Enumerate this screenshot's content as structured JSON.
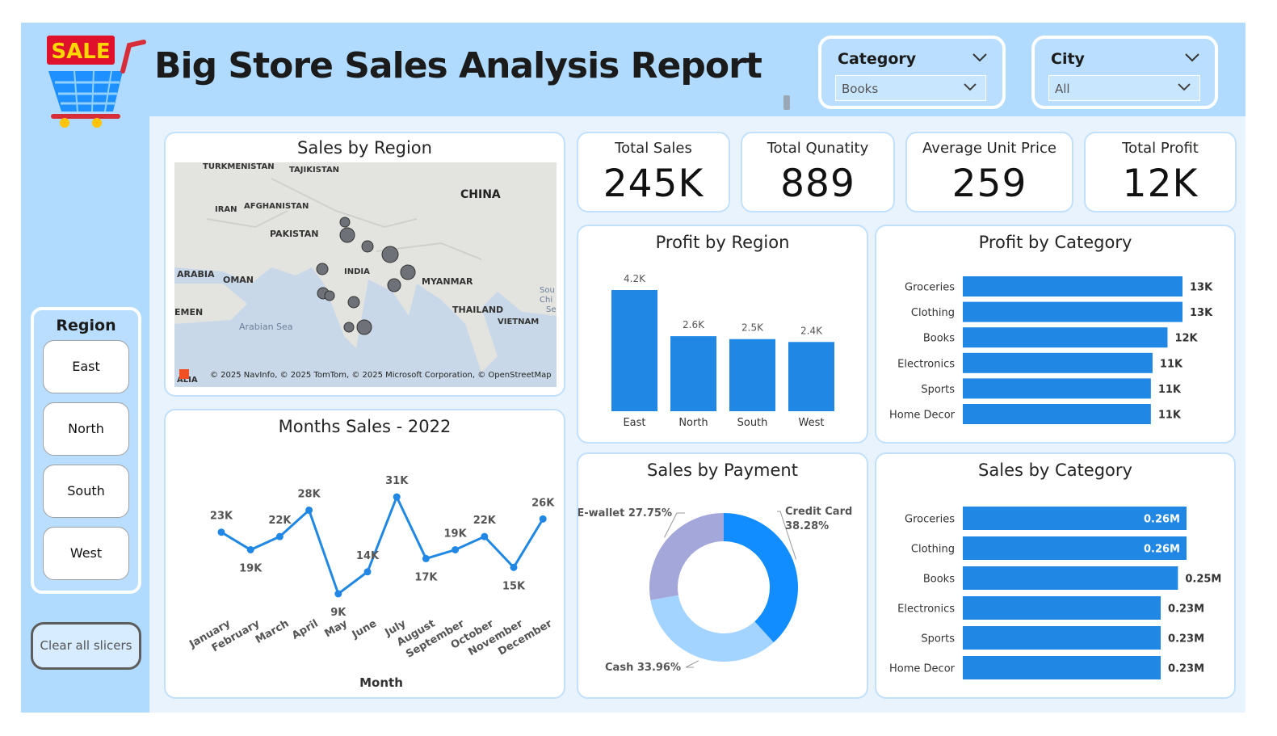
{
  "header": {
    "title": "Big Store Sales Analysis Report",
    "logo_text": "SALE"
  },
  "filters": {
    "category": {
      "label": "Category",
      "value": "Books"
    },
    "city": {
      "label": "City",
      "value": "All"
    }
  },
  "region_slicer": {
    "title": "Region",
    "items": [
      {
        "label": "East"
      },
      {
        "label": "North"
      },
      {
        "label": "South"
      },
      {
        "label": "West"
      }
    ]
  },
  "clear_button": "Clear all slicers",
  "kpis": [
    {
      "title": "Total Sales",
      "value": "245K"
    },
    {
      "title": "Total Qunatity",
      "value": "889"
    },
    {
      "title": "Average Unit Price",
      "value": "259"
    },
    {
      "title": "Total Profit",
      "value": "12K"
    }
  ],
  "map": {
    "title": "Sales by Region",
    "labels": [
      "TURKMENISTAN",
      "TAJIKISTAN",
      "CHINA",
      "IRAN",
      "AFGHANISTAN",
      "PAKISTAN",
      "ARABIA",
      "OMAN",
      "INDIA",
      "MYANMAR",
      "EMEN",
      "THAILAND",
      "VIETNAM",
      "Arabian Sea",
      "Sou",
      "Chi",
      "Se",
      "ALIA"
    ],
    "attribution": "© 2025 NavInfo, © 2025 TomTom, © 2025 Microsoft Corporation, © OpenStreetMap"
  },
  "colors": {
    "accent": "#2088e4",
    "background": "#b0dbff",
    "main_background": "#e8f3fd",
    "donut_credit": "#118dff",
    "donut_cash": "#a2d4ff",
    "donut_ewallet": "#a3a7d9"
  },
  "chart_data": [
    {
      "id": "profit_by_region",
      "type": "bar",
      "title": "Profit by Region",
      "categories": [
        "East",
        "North",
        "South",
        "West"
      ],
      "values": [
        4.2,
        2.6,
        2.5,
        2.4
      ],
      "data_labels": [
        "4.2K",
        "2.6K",
        "2.5K",
        "2.4K"
      ],
      "ylim": [
        0,
        4.2
      ]
    },
    {
      "id": "profit_by_category",
      "type": "bar",
      "orientation": "horizontal",
      "title": "Profit by Category",
      "categories": [
        "Groceries",
        "Clothing",
        "Books",
        "Electronics",
        "Sports",
        "Home Decor"
      ],
      "values": [
        13.2,
        13.2,
        12.3,
        11.4,
        11.3,
        11.3
      ],
      "data_labels": [
        "13K",
        "13K",
        "12K",
        "11K",
        "11K",
        "11K"
      ]
    },
    {
      "id": "months_sales",
      "type": "line",
      "title": "Months Sales - 2022",
      "xlabel": "Month",
      "categories": [
        "January",
        "February",
        "March",
        "April",
        "May",
        "June",
        "July",
        "August",
        "September",
        "October",
        "November",
        "December"
      ],
      "values": [
        23,
        19,
        22,
        28,
        9,
        14,
        31,
        17,
        19,
        22,
        15,
        26
      ],
      "data_labels": [
        "23K",
        "19K",
        "22K",
        "28K",
        "9K",
        "14K",
        "31K",
        "17K",
        "19K",
        "22K",
        "15K",
        "26K"
      ]
    },
    {
      "id": "sales_by_payment",
      "type": "pie",
      "title": "Sales by Payment",
      "categories": [
        "Credit Card",
        "Cash",
        "E-wallet"
      ],
      "values": [
        38.28,
        33.96,
        27.75
      ],
      "data_labels": [
        "Credit Card 38.28%",
        "Cash 33.96%",
        "E-wallet 27.75%"
      ]
    },
    {
      "id": "sales_by_category",
      "type": "bar",
      "orientation": "horizontal",
      "title": "Sales by Category",
      "categories": [
        "Groceries",
        "Clothing",
        "Books",
        "Electronics",
        "Sports",
        "Home Decor"
      ],
      "values": [
        0.26,
        0.26,
        0.25,
        0.23,
        0.23,
        0.23
      ],
      "data_labels": [
        "0.26M",
        "0.26M",
        "0.25M",
        "0.23M",
        "0.23M",
        "0.23M"
      ]
    }
  ]
}
